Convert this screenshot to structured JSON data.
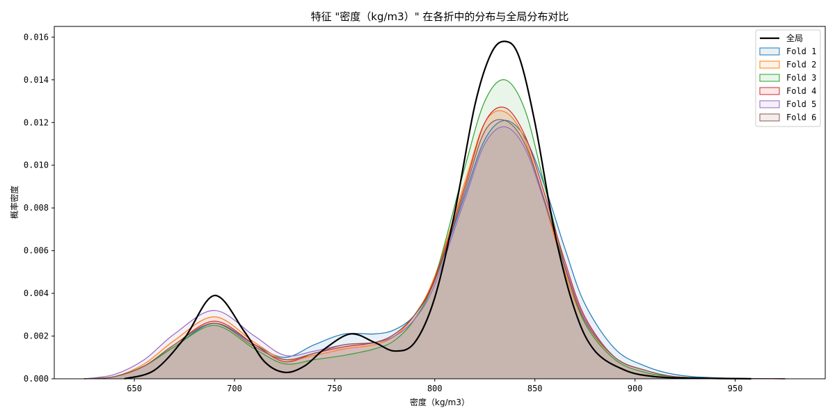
{
  "chart_data": {
    "type": "area",
    "title": "特征 \"密度（kg/m3）\" 在各折中的分布与全局分布对比",
    "xlabel": "密度（kg/m3）",
    "ylabel": "概率密度",
    "xlim": [
      610,
      995
    ],
    "ylim": [
      0,
      0.0165
    ],
    "xticks": [
      650,
      700,
      750,
      800,
      850,
      900,
      950
    ],
    "yticks": [
      0.0,
      0.002,
      0.004,
      0.006,
      0.008,
      0.01,
      0.012,
      0.014,
      0.016
    ],
    "ytick_labels": [
      "0.000",
      "0.002",
      "0.004",
      "0.006",
      "0.008",
      "0.010",
      "0.012",
      "0.014",
      "0.016"
    ],
    "legend_position": "top-right",
    "grid": false,
    "global": {
      "name": "全局",
      "color": "#000000",
      "x": [
        645,
        660,
        675,
        690,
        705,
        715,
        725,
        735,
        745,
        758,
        770,
        780,
        790,
        800,
        810,
        820,
        828,
        835,
        842,
        850,
        860,
        870,
        880,
        895,
        910,
        930,
        958
      ],
      "y": [
        0.0,
        0.0004,
        0.0019,
        0.0039,
        0.0022,
        0.0008,
        0.0003,
        0.0006,
        0.0014,
        0.0021,
        0.0017,
        0.0013,
        0.0017,
        0.0038,
        0.0078,
        0.0128,
        0.0152,
        0.0158,
        0.0151,
        0.012,
        0.0068,
        0.0032,
        0.0013,
        0.0004,
        0.0001,
        3e-05,
        0.0
      ]
    },
    "series": [
      {
        "name": "Fold 1",
        "color": "#1f77b4",
        "x": [
          625,
          640,
          655,
          670,
          690,
          710,
          725,
          740,
          755,
          770,
          780,
          790,
          800,
          815,
          825,
          835,
          845,
          855,
          865,
          875,
          890,
          905,
          920,
          940,
          975
        ],
        "y": [
          0.0,
          0.0001,
          0.0006,
          0.0015,
          0.0026,
          0.0016,
          0.001,
          0.0016,
          0.0021,
          0.0021,
          0.0023,
          0.003,
          0.0046,
          0.0086,
          0.0112,
          0.0121,
          0.0113,
          0.009,
          0.0061,
          0.0035,
          0.0014,
          0.0006,
          0.0002,
          5e-05,
          0.0
        ]
      },
      {
        "name": "Fold 2",
        "color": "#ff7f0e",
        "x": [
          625,
          640,
          655,
          670,
          690,
          710,
          725,
          740,
          755,
          770,
          780,
          790,
          800,
          815,
          825,
          835,
          845,
          855,
          865,
          875,
          890,
          905,
          920,
          940,
          975
        ],
        "y": [
          0.0,
          0.0001,
          0.0007,
          0.0018,
          0.0029,
          0.0017,
          0.0009,
          0.0011,
          0.0014,
          0.0016,
          0.002,
          0.003,
          0.0048,
          0.0092,
          0.012,
          0.0125,
          0.0112,
          0.0082,
          0.005,
          0.0026,
          0.0009,
          0.0003,
          0.0001,
          3e-05,
          0.0
        ]
      },
      {
        "name": "Fold 3",
        "color": "#2ca02c",
        "x": [
          625,
          640,
          655,
          670,
          690,
          710,
          725,
          740,
          755,
          770,
          780,
          790,
          800,
          815,
          825,
          835,
          845,
          855,
          865,
          875,
          890,
          905,
          920,
          940,
          975
        ],
        "y": [
          0.0,
          0.0001,
          0.0006,
          0.0015,
          0.0025,
          0.0014,
          0.0007,
          0.0009,
          0.0011,
          0.0014,
          0.0018,
          0.0028,
          0.0047,
          0.0099,
          0.013,
          0.014,
          0.0126,
          0.009,
          0.0053,
          0.0026,
          0.0009,
          0.0003,
          0.0001,
          3e-05,
          0.0
        ]
      },
      {
        "name": "Fold 4",
        "color": "#d62728",
        "x": [
          625,
          640,
          655,
          670,
          690,
          710,
          725,
          740,
          755,
          770,
          780,
          790,
          800,
          815,
          825,
          835,
          845,
          855,
          865,
          875,
          890,
          905,
          920,
          940,
          975
        ],
        "y": [
          0.0,
          0.0001,
          0.0006,
          0.0016,
          0.0027,
          0.0016,
          0.0008,
          0.0012,
          0.0015,
          0.0017,
          0.0021,
          0.003,
          0.0047,
          0.009,
          0.012,
          0.0127,
          0.0114,
          0.0086,
          0.0055,
          0.0029,
          0.001,
          0.0004,
          0.0001,
          3e-05,
          0.0
        ]
      },
      {
        "name": "Fold 5",
        "color": "#9467bd",
        "x": [
          625,
          640,
          655,
          670,
          690,
          710,
          725,
          740,
          755,
          770,
          780,
          790,
          800,
          815,
          825,
          835,
          845,
          855,
          865,
          875,
          890,
          905,
          920,
          940,
          975
        ],
        "y": [
          0.0,
          0.0002,
          0.0009,
          0.0021,
          0.0032,
          0.002,
          0.0011,
          0.0013,
          0.0016,
          0.0017,
          0.002,
          0.0028,
          0.0044,
          0.0084,
          0.011,
          0.0118,
          0.0108,
          0.0082,
          0.0053,
          0.0028,
          0.001,
          0.0004,
          0.0001,
          3e-05,
          0.0
        ]
      },
      {
        "name": "Fold 6",
        "color": "#8c564b",
        "x": [
          625,
          640,
          655,
          670,
          690,
          710,
          725,
          740,
          755,
          770,
          780,
          790,
          800,
          815,
          825,
          835,
          845,
          855,
          865,
          875,
          890,
          905,
          920,
          940,
          975
        ],
        "y": [
          0.0,
          0.0001,
          0.0006,
          0.0016,
          0.0026,
          0.0015,
          0.0009,
          0.0012,
          0.0016,
          0.0017,
          0.0021,
          0.003,
          0.0046,
          0.0088,
          0.0116,
          0.0121,
          0.011,
          0.0083,
          0.0052,
          0.0027,
          0.001,
          0.0004,
          0.0001,
          3e-05,
          0.0
        ]
      }
    ]
  }
}
